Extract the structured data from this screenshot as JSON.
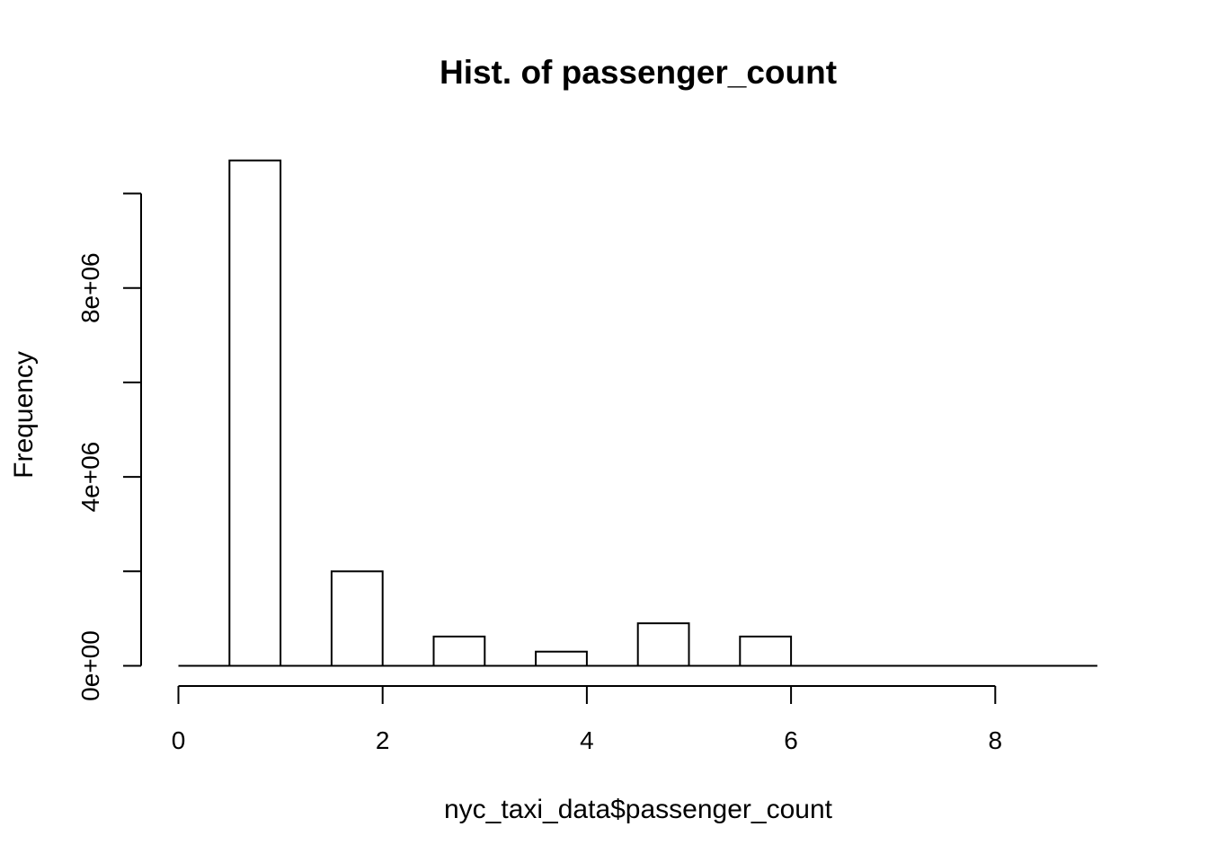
{
  "chart_data": {
    "type": "bar",
    "title": "Hist. of passenger_count",
    "xlabel": "nyc_taxi_data$passenger_count",
    "ylabel": "Frequency",
    "bins": [
      {
        "start": 0.5,
        "end": 1.0,
        "value": 10700000
      },
      {
        "start": 1.0,
        "end": 1.5,
        "value": 0
      },
      {
        "start": 1.5,
        "end": 2.0,
        "value": 2000000
      },
      {
        "start": 2.0,
        "end": 2.5,
        "value": 0
      },
      {
        "start": 2.5,
        "end": 3.0,
        "value": 620000
      },
      {
        "start": 3.0,
        "end": 3.5,
        "value": 0
      },
      {
        "start": 3.5,
        "end": 4.0,
        "value": 300000
      },
      {
        "start": 4.0,
        "end": 4.5,
        "value": 0
      },
      {
        "start": 4.5,
        "end": 5.0,
        "value": 900000
      },
      {
        "start": 5.0,
        "end": 5.5,
        "value": 0
      },
      {
        "start": 5.5,
        "end": 6.0,
        "value": 620000
      },
      {
        "start": 6.0,
        "end": 9.0,
        "value": 0
      }
    ],
    "xlim": [
      0,
      9
    ],
    "ylim": [
      0,
      10700000
    ],
    "x_ticks": [
      0,
      2,
      4,
      6,
      8
    ],
    "x_tick_labels": [
      "0",
      "2",
      "4",
      "6",
      "8"
    ],
    "y_ticks": [
      0,
      2000000,
      4000000,
      6000000,
      8000000,
      10000000
    ],
    "y_tick_labels": [
      "0e+00",
      "",
      "4e+06",
      "",
      "8e+06",
      ""
    ],
    "grid": false,
    "colors": {
      "fill": "#ffffff",
      "stroke": "#000000",
      "background": "#ffffff"
    }
  }
}
